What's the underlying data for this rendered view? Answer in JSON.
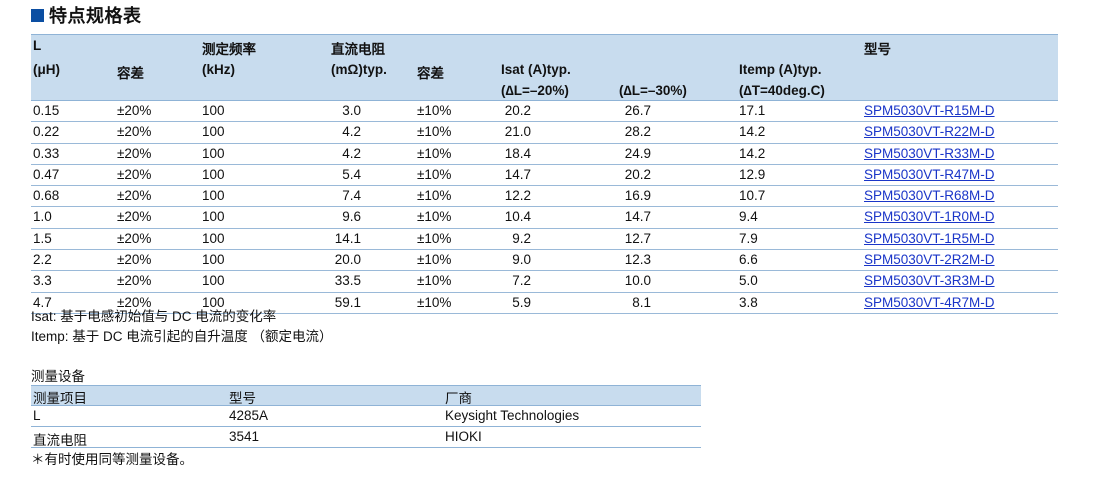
{
  "heading": "特点规格表",
  "spec_table": {
    "headers": {
      "L": "L",
      "L_unit": "(μH)",
      "tolerance_L": "容差",
      "freq": "测定频率",
      "freq_unit": "(kHz)",
      "dcr": "直流电阻",
      "dcr_unit": "(mΩ)typ.",
      "tolerance_dcr": "容差",
      "isat": "Isat (A)typ.",
      "isat_20": "(∆L=–20%)",
      "isat_30": "(∆L=–30%)",
      "itemp": "Itemp (A)typ.",
      "itemp_cond": "(∆T=40deg.C)",
      "part": "型号"
    },
    "rows": [
      {
        "L": "0.15",
        "tol": "±20%",
        "freq": "100",
        "dcr": "3.0",
        "dtol": "±10%",
        "isat20": "20.2",
        "isat30": "26.7",
        "itemp": "17.1",
        "part": "SPM5030VT-R15M-D"
      },
      {
        "L": "0.22",
        "tol": "±20%",
        "freq": "100",
        "dcr": "4.2",
        "dtol": "±10%",
        "isat20": "21.0",
        "isat30": "28.2",
        "itemp": "14.2",
        "part": "SPM5030VT-R22M-D"
      },
      {
        "L": "0.33",
        "tol": "±20%",
        "freq": "100",
        "dcr": "4.2",
        "dtol": "±10%",
        "isat20": "18.4",
        "isat30": "24.9",
        "itemp": "14.2",
        "part": "SPM5030VT-R33M-D"
      },
      {
        "L": "0.47",
        "tol": "±20%",
        "freq": "100",
        "dcr": "5.4",
        "dtol": "±10%",
        "isat20": "14.7",
        "isat30": "20.2",
        "itemp": "12.9",
        "part": "SPM5030VT-R47M-D"
      },
      {
        "L": "0.68",
        "tol": "±20%",
        "freq": "100",
        "dcr": "7.4",
        "dtol": "±10%",
        "isat20": "12.2",
        "isat30": "16.9",
        "itemp": "10.7",
        "part": "SPM5030VT-R68M-D"
      },
      {
        "L": "1.0",
        "tol": "±20%",
        "freq": "100",
        "dcr": "9.6",
        "dtol": "±10%",
        "isat20": "10.4",
        "isat30": "14.7",
        "itemp": "9.4",
        "part": "SPM5030VT-1R0M-D"
      },
      {
        "L": "1.5",
        "tol": "±20%",
        "freq": "100",
        "dcr": "14.1",
        "dtol": "±10%",
        "isat20": "9.2",
        "isat30": "12.7",
        "itemp": "7.9",
        "part": "SPM5030VT-1R5M-D"
      },
      {
        "L": "2.2",
        "tol": "±20%",
        "freq": "100",
        "dcr": "20.0",
        "dtol": "±10%",
        "isat20": "9.0",
        "isat30": "12.3",
        "itemp": "6.6",
        "part": "SPM5030VT-2R2M-D"
      },
      {
        "L": "3.3",
        "tol": "±20%",
        "freq": "100",
        "dcr": "33.5",
        "dtol": "±10%",
        "isat20": "7.2",
        "isat30": "10.0",
        "itemp": "5.0",
        "part": "SPM5030VT-3R3M-D"
      },
      {
        "L": "4.7",
        "tol": "±20%",
        "freq": "100",
        "dcr": "59.1",
        "dtol": "±10%",
        "isat20": "5.9",
        "isat30": "8.1",
        "itemp": "3.8",
        "part": "SPM5030VT-4R7M-D"
      }
    ]
  },
  "notes": {
    "isat": "Isat: 基于电感初始值与 DC 电流的变化率",
    "itemp": "Itemp: 基于 DC 电流引起的自升温度 （额定电流）"
  },
  "equipment": {
    "title": "测量设备",
    "headers": {
      "item": "测量项目",
      "model": "型号",
      "maker": "厂商"
    },
    "rows": [
      {
        "item": "L",
        "model": "4285A",
        "maker": "Keysight Technologies"
      },
      {
        "item": "直流电阻",
        "model": "3541",
        "maker": "HIOKI"
      }
    ],
    "footnote": "＊有时使用同等测量设备。"
  },
  "colors": {
    "accent": "#0b4ea2",
    "header_bg": "#c8dcee",
    "link": "#1a35c8"
  }
}
